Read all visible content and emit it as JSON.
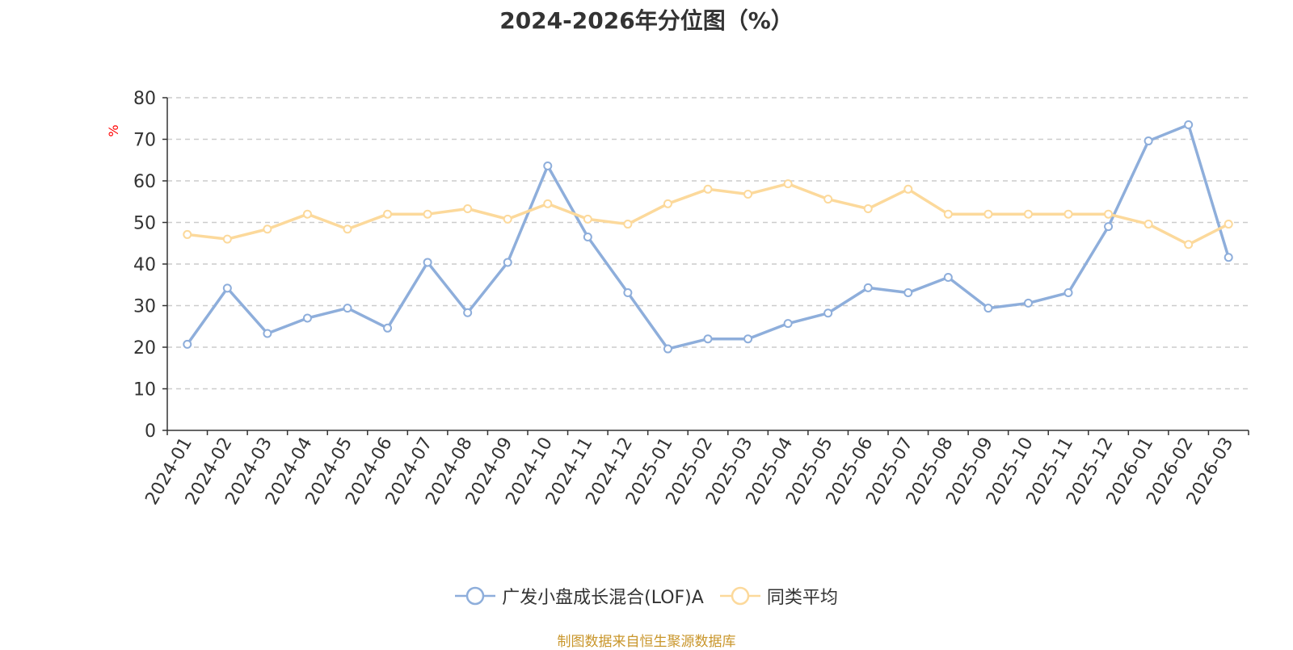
{
  "chart_data": {
    "type": "line",
    "title": "2024-2026年分位图（%）",
    "ylabel": "%",
    "ylim": [
      0,
      80
    ],
    "yticks": [
      0,
      10,
      20,
      30,
      40,
      50,
      60,
      70,
      80
    ],
    "grid": true,
    "legend_position": "bottom",
    "categories": [
      "2024-01",
      "2024-02",
      "2024-03",
      "2024-04",
      "2024-05",
      "2024-06",
      "2024-07",
      "2024-08",
      "2024-09",
      "2024-10",
      "2024-11",
      "2024-12",
      "2025-01",
      "2025-02",
      "2025-03",
      "2025-04",
      "2025-05",
      "2025-06",
      "2025-07",
      "2025-08",
      "2025-09",
      "2025-10",
      "2025-11",
      "2025-12",
      "2026-01",
      "2026-02",
      "2026-03"
    ],
    "series": [
      {
        "name": "广发小盘成长混合(LOF)A",
        "color": "#8eaedb",
        "values": [
          20.7,
          34.2,
          23.3,
          27.0,
          29.4,
          24.6,
          40.4,
          28.3,
          40.4,
          63.6,
          46.5,
          33.1,
          19.6,
          22.0,
          22.0,
          25.7,
          28.2,
          34.3,
          33.1,
          36.8,
          29.4,
          30.6,
          33.1,
          49.0,
          69.6,
          73.5,
          41.6
        ]
      },
      {
        "name": "同类平均",
        "color": "#fcd99b",
        "values": [
          47.1,
          46.0,
          48.4,
          52.0,
          48.4,
          52.0,
          52.0,
          53.3,
          50.8,
          54.5,
          50.8,
          49.6,
          54.5,
          58.0,
          56.8,
          59.3,
          55.6,
          53.3,
          58.0,
          52.0,
          52.0,
          52.0,
          52.0,
          52.0,
          49.6,
          44.7,
          49.6
        ]
      }
    ]
  },
  "footer": {
    "source": "制图数据来自恒生聚源数据库"
  }
}
